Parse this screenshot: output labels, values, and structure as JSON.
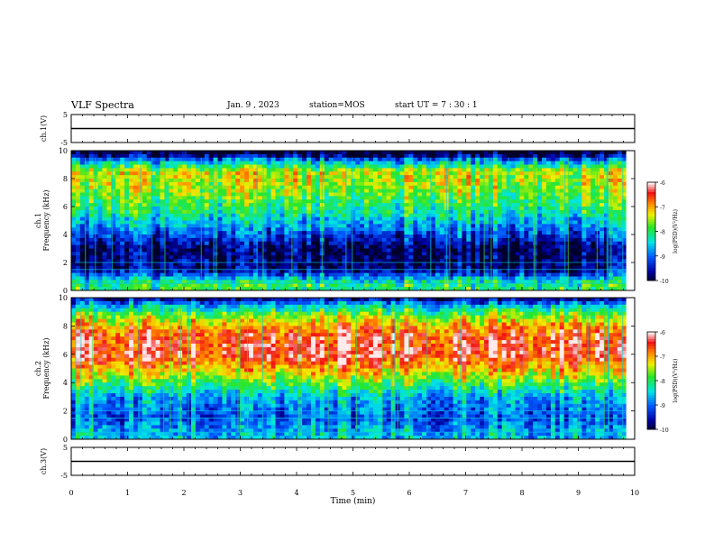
{
  "header": {
    "title": "VLF Spectra",
    "date": "Jan. 9 , 2023",
    "station": "station=MOS",
    "start_ut": "start UT =   7 : 30 : 1"
  },
  "chart_data": [
    {
      "type": "line",
      "panel": "ch1-waveform",
      "ylabel": "ch.1(V)",
      "ylim": [
        -5,
        5
      ],
      "yticks": [
        "5",
        "-5"
      ],
      "x": [
        0,
        10
      ],
      "values": [
        0,
        0
      ],
      "xlim": [
        0,
        10
      ]
    },
    {
      "type": "heatmap",
      "panel": "ch1-spectrogram",
      "ylabel": "ch.1 Frequency (kHz)",
      "ylim": [
        0,
        10
      ],
      "yticks": [
        "0",
        "2",
        "4",
        "6",
        "8",
        "10"
      ],
      "xlim": [
        0,
        10
      ],
      "x_data_end": 9.85,
      "colorbar": {
        "label": "log(PSD)(V²/Hz)",
        "range": [
          -10,
          -6
        ],
        "ticks": [
          "-6",
          "-7",
          "-8",
          "-9",
          "-10"
        ]
      },
      "intensity_profile": [
        {
          "freq_khz": 0.5,
          "level": -8.0
        },
        {
          "freq_khz": 1.5,
          "level": -9.7
        },
        {
          "freq_khz": 3.0,
          "level": -9.8
        },
        {
          "freq_khz": 4.5,
          "level": -8.8
        },
        {
          "freq_khz": 5.5,
          "level": -8.2
        },
        {
          "freq_khz": 7.0,
          "level": -7.6
        },
        {
          "freq_khz": 8.5,
          "level": -7.3
        },
        {
          "freq_khz": 9.3,
          "level": -8.8
        },
        {
          "freq_khz": 9.8,
          "level": -10.0
        }
      ]
    },
    {
      "type": "heatmap",
      "panel": "ch2-spectrogram",
      "ylabel": "ch.2 Frequency (kHz)",
      "ylim": [
        0,
        10
      ],
      "yticks": [
        "0",
        "2",
        "4",
        "6",
        "8",
        "10"
      ],
      "xlim": [
        0,
        10
      ],
      "x_data_end": 9.85,
      "colorbar": {
        "label": "log(PSD)(V²/Hz)",
        "range": [
          -10,
          -6
        ],
        "ticks": [
          "-6",
          "-7",
          "-8",
          "-9",
          "-10"
        ]
      },
      "intensity_profile": [
        {
          "freq_khz": 0.3,
          "level": -8.5
        },
        {
          "freq_khz": 1.5,
          "level": -9.0
        },
        {
          "freq_khz": 3.0,
          "level": -8.6
        },
        {
          "freq_khz": 4.5,
          "level": -7.3
        },
        {
          "freq_khz": 6.0,
          "level": -6.3
        },
        {
          "freq_khz": 7.5,
          "level": -6.5
        },
        {
          "freq_khz": 8.7,
          "level": -7.5
        },
        {
          "freq_khz": 9.5,
          "level": -8.6
        },
        {
          "freq_khz": 9.9,
          "level": -9.5
        }
      ]
    },
    {
      "type": "line",
      "panel": "ch3-waveform",
      "ylabel": "ch.3(V)",
      "ylim": [
        -5,
        5
      ],
      "yticks": [
        "5",
        "-5"
      ],
      "x": [
        0,
        10
      ],
      "values": [
        0,
        0
      ],
      "xlim": [
        0,
        10
      ]
    }
  ],
  "xaxis": {
    "label": "Time (min)",
    "ticks": [
      "0",
      "1",
      "2",
      "3",
      "4",
      "5",
      "6",
      "7",
      "8",
      "9",
      "10"
    ],
    "range": [
      0,
      10
    ]
  }
}
